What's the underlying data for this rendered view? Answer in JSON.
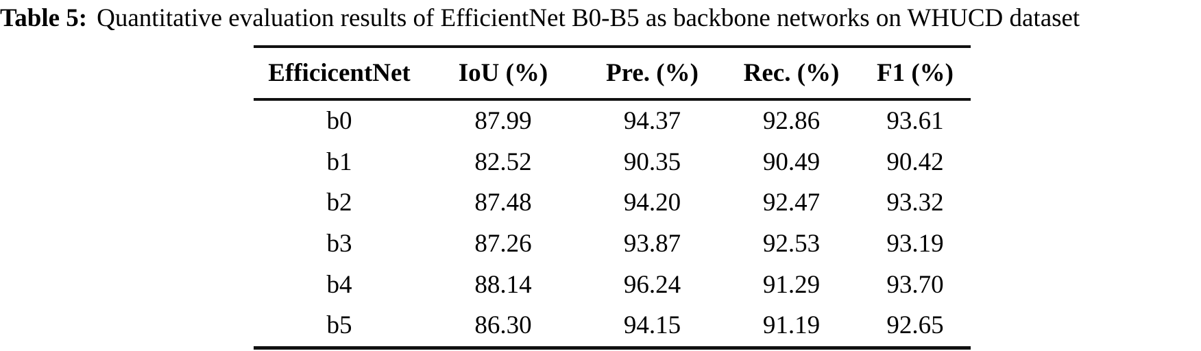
{
  "page": {
    "background": "#ffffff",
    "text_color": "#000000",
    "rule_color": "#111111"
  },
  "caption": {
    "label": "Table 5:",
    "text": "Quantitative evaluation results of EfficientNet B0-B5 as backbone networks on WHUCD dataset"
  },
  "table": {
    "headers": [
      "EfficicentNet",
      "IoU (%)",
      "Pre. (%)",
      "Rec. (%)",
      "F1 (%)"
    ],
    "rows": [
      [
        "b0",
        "87.99",
        "94.37",
        "92.86",
        "93.61"
      ],
      [
        "b1",
        "82.52",
        "90.35",
        "90.49",
        "90.42"
      ],
      [
        "b2",
        "87.48",
        "94.20",
        "92.47",
        "93.32"
      ],
      [
        "b3",
        "87.26",
        "93.87",
        "92.53",
        "93.19"
      ],
      [
        "b4",
        "88.14",
        "96.24",
        "91.29",
        "93.70"
      ],
      [
        "b5",
        "86.30",
        "94.15",
        "91.19",
        "92.65"
      ]
    ]
  },
  "chart_data": {
    "type": "table",
    "title": "Table 5: Quantitative evaluation results of EfficientNet B0-B5 as backbone networks on WHUCD dataset",
    "columns": [
      "EfficicentNet",
      "IoU (%)",
      "Pre. (%)",
      "Rec. (%)",
      "F1 (%)"
    ],
    "rows": [
      {
        "backbone": "b0",
        "iou": 87.99,
        "pre": 94.37,
        "rec": 92.86,
        "f1": 93.61
      },
      {
        "backbone": "b1",
        "iou": 82.52,
        "pre": 90.35,
        "rec": 90.49,
        "f1": 90.42
      },
      {
        "backbone": "b2",
        "iou": 87.48,
        "pre": 94.2,
        "rec": 92.47,
        "f1": 93.32
      },
      {
        "backbone": "b3",
        "iou": 87.26,
        "pre": 93.87,
        "rec": 92.53,
        "f1": 93.19
      },
      {
        "backbone": "b4",
        "iou": 88.14,
        "pre": 96.24,
        "rec": 91.29,
        "f1": 93.7
      },
      {
        "backbone": "b5",
        "iou": 86.3,
        "pre": 94.15,
        "rec": 91.19,
        "f1": 92.65
      }
    ]
  }
}
